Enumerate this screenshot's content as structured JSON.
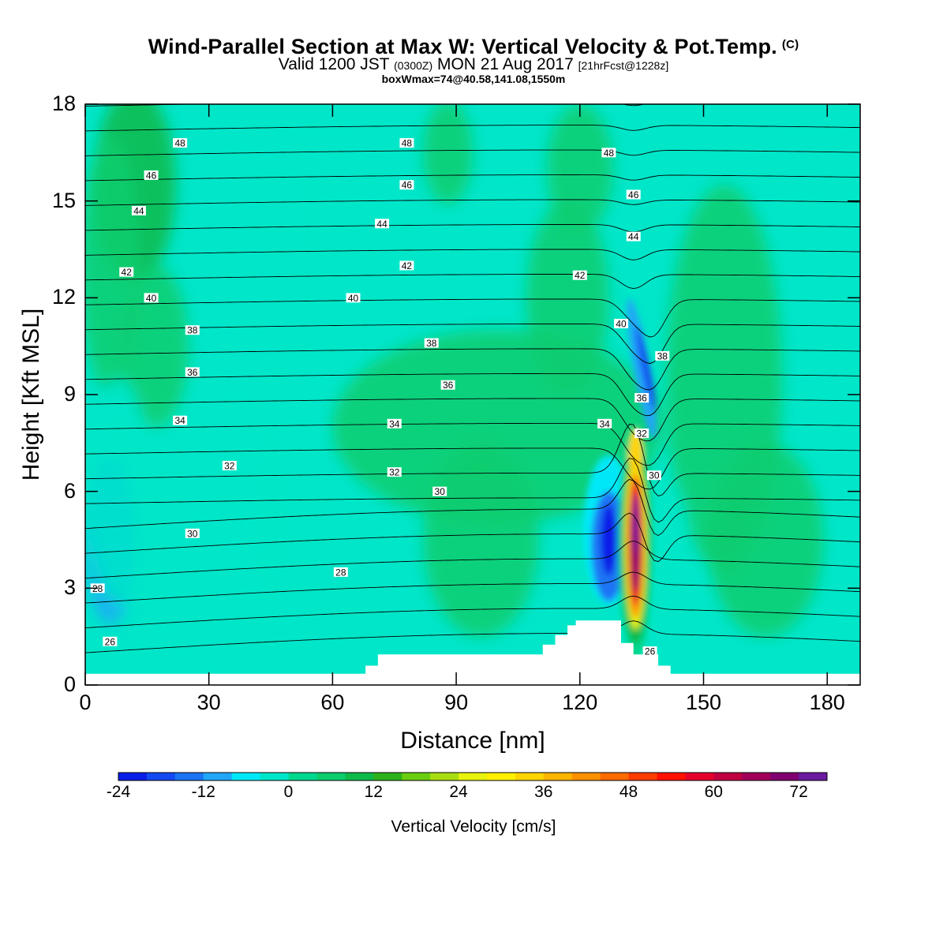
{
  "header": {
    "title": "Wind-Parallel Section at Max W: Vertical Velocity & Pot.Temp.",
    "copyright": "(C)",
    "valid_prefix": "Valid 1200 JST",
    "valid_utc": "(0300Z)",
    "valid_date": "MON 21 Aug 2017",
    "forecast": "[21hrFcst@1228z]",
    "box_info": "boxWmax=74@40.58,141.08,1550m"
  },
  "colors": {
    "base": "#00e6c9",
    "frame": "#000000",
    "colorbar": [
      "#0b1ee8",
      "#1349f0",
      "#1b74f4",
      "#22a6f8",
      "#00e8f8",
      "#00e6c8",
      "#00d88e",
      "#0ccc6e",
      "#0fba4a",
      "#2db21c",
      "#6acd10",
      "#a8de10",
      "#e8f20c",
      "#fff000",
      "#ffd400",
      "#ffb400",
      "#ff9000",
      "#ff6a00",
      "#ff3c00",
      "#ff1000",
      "#e6002c",
      "#c00040",
      "#a0005a",
      "#800070",
      "#6a1aa0"
    ]
  },
  "chart_data": {
    "type": "heatmap",
    "title": "Wind-Parallel Section at Max W: Vertical Velocity & Pot.Temp.",
    "xlabel": "Distance [nm]",
    "ylabel": "Height [Kft MSL]",
    "xlim": [
      0,
      188
    ],
    "ylim": [
      0,
      18
    ],
    "x_ticks": [
      0,
      30,
      60,
      90,
      120,
      150,
      180
    ],
    "y_ticks": [
      0,
      3,
      6,
      9,
      12,
      15,
      18
    ],
    "colorbar": {
      "label": "Vertical Velocity [cm/s]",
      "min": -24,
      "max": 78,
      "step": 4,
      "tick_labels": [
        -24,
        -12,
        0,
        12,
        24,
        36,
        48,
        60,
        72
      ]
    },
    "terrain": [
      [
        0,
        0.35
      ],
      [
        68,
        0.35
      ],
      [
        68,
        0.6
      ],
      [
        71,
        0.6
      ],
      [
        71,
        0.95
      ],
      [
        111,
        0.95
      ],
      [
        111,
        1.25
      ],
      [
        114,
        1.25
      ],
      [
        114,
        1.55
      ],
      [
        117,
        1.55
      ],
      [
        117,
        1.85
      ],
      [
        119,
        1.85
      ],
      [
        119,
        2.0
      ],
      [
        130,
        2.0
      ],
      [
        130,
        1.3
      ],
      [
        133,
        1.3
      ],
      [
        133,
        0.95
      ],
      [
        139,
        0.95
      ],
      [
        139,
        0.6
      ],
      [
        142,
        0.6
      ],
      [
        142,
        0.35
      ],
      [
        188,
        0.35
      ]
    ],
    "vertical_velocity_features": [
      {
        "x": 5,
        "y": 4.3,
        "value": -12
      },
      {
        "x": 45,
        "y": 5.3,
        "value": -4
      },
      {
        "x": 127,
        "y": 4.5,
        "value": -24
      },
      {
        "x": 133.5,
        "y": 5.0,
        "value": 74
      },
      {
        "x": 133.5,
        "y": 7.2,
        "value": 32
      },
      {
        "x": 136,
        "y": 9.8,
        "value": -20
      },
      {
        "x": 10,
        "y": 16.5,
        "value": 12
      },
      {
        "x": 100,
        "y": 9.5,
        "value": 8
      },
      {
        "x": 155,
        "y": 8.0,
        "value": 6
      }
    ],
    "pot_temp_labels": [
      {
        "x": 23,
        "y": 16.8,
        "label": "48"
      },
      {
        "x": 78,
        "y": 16.8,
        "label": "48"
      },
      {
        "x": 127,
        "y": 16.5,
        "label": "48"
      },
      {
        "x": 16,
        "y": 15.8,
        "label": "46"
      },
      {
        "x": 78,
        "y": 15.5,
        "label": "46"
      },
      {
        "x": 133,
        "y": 15.2,
        "label": "46"
      },
      {
        "x": 13,
        "y": 14.7,
        "label": "44"
      },
      {
        "x": 72,
        "y": 14.3,
        "label": "44"
      },
      {
        "x": 133,
        "y": 13.9,
        "label": "44"
      },
      {
        "x": 10,
        "y": 12.8,
        "label": "42"
      },
      {
        "x": 78,
        "y": 13.0,
        "label": "42"
      },
      {
        "x": 120,
        "y": 12.7,
        "label": "42"
      },
      {
        "x": 16,
        "y": 12.0,
        "label": "40"
      },
      {
        "x": 65,
        "y": 12.0,
        "label": "40"
      },
      {
        "x": 130,
        "y": 11.2,
        "label": "40"
      },
      {
        "x": 26,
        "y": 11.0,
        "label": "38"
      },
      {
        "x": 84,
        "y": 10.6,
        "label": "38"
      },
      {
        "x": 140,
        "y": 10.2,
        "label": "38"
      },
      {
        "x": 26,
        "y": 9.7,
        "label": "36"
      },
      {
        "x": 88,
        "y": 9.3,
        "label": "36"
      },
      {
        "x": 135,
        "y": 8.9,
        "label": "36"
      },
      {
        "x": 23,
        "y": 8.2,
        "label": "34"
      },
      {
        "x": 75,
        "y": 8.1,
        "label": "34"
      },
      {
        "x": 126,
        "y": 8.1,
        "label": "34"
      },
      {
        "x": 35,
        "y": 6.8,
        "label": "32"
      },
      {
        "x": 75,
        "y": 6.6,
        "label": "32"
      },
      {
        "x": 135,
        "y": 7.8,
        "label": "32"
      },
      {
        "x": 86,
        "y": 6.0,
        "label": "30"
      },
      {
        "x": 26,
        "y": 4.7,
        "label": "30"
      },
      {
        "x": 138,
        "y": 6.5,
        "label": "30"
      },
      {
        "x": 62,
        "y": 3.5,
        "label": "28"
      },
      {
        "x": 3,
        "y": 3.0,
        "label": "28"
      },
      {
        "x": 6,
        "y": 1.35,
        "label": "26"
      },
      {
        "x": 137,
        "y": 1.05,
        "label": "26"
      }
    ]
  }
}
